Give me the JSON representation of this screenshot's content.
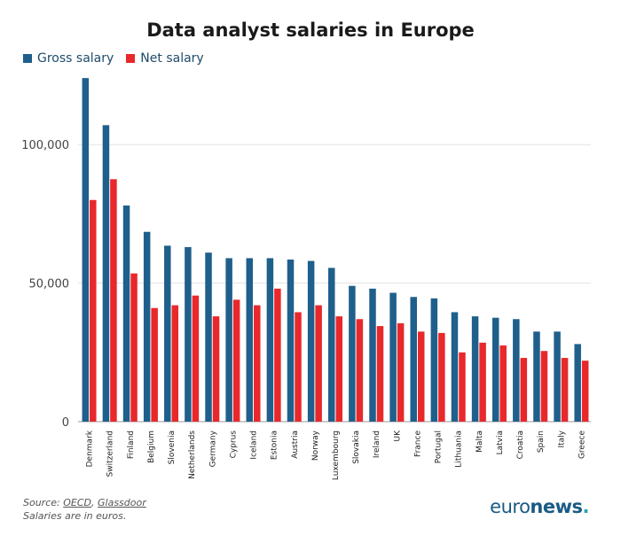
{
  "chart_data": {
    "type": "bar",
    "title": "Data analyst salaries in Europe",
    "xlabel": "",
    "ylabel": "",
    "ylim": [
      0,
      125000
    ],
    "yticks": [
      0,
      50000,
      100000
    ],
    "ytick_labels": [
      "0",
      "50,000",
      "100,000"
    ],
    "grid": true,
    "legend_position": "top-left",
    "categories": [
      "Denmark",
      "Switzerland",
      "Finland",
      "Belgium",
      "Slovenia",
      "Netherlands",
      "Germany",
      "Cyprus",
      "Iceland",
      "Estonia",
      "Austria",
      "Norway",
      "Luxembourg",
      "Slovakia",
      "Ireland",
      "UK",
      "France",
      "Portugal",
      "Lithuania",
      "Malta",
      "Latvia",
      "Croatia",
      "Spain",
      "Italy",
      "Greece"
    ],
    "series": [
      {
        "name": "Gross salary",
        "color": "#1f5f8b",
        "values": [
          124000,
          107000,
          78000,
          68500,
          63500,
          63000,
          61000,
          59000,
          59000,
          59000,
          58500,
          58000,
          55500,
          49000,
          48000,
          46500,
          45000,
          44500,
          39500,
          38000,
          37500,
          37000,
          32500,
          32500,
          28000
        ]
      },
      {
        "name": "Net salary",
        "color": "#e8282b",
        "values": [
          80000,
          87500,
          53500,
          41000,
          42000,
          45500,
          38000,
          44000,
          42000,
          48000,
          39500,
          42000,
          38000,
          37000,
          34500,
          35500,
          32500,
          32000,
          25000,
          28500,
          27500,
          23000,
          25500,
          23000,
          22000
        ]
      }
    ]
  },
  "footer": {
    "source_prefix": "Source: ",
    "source_oecd": "OECD",
    "source_sep": ", ",
    "source_glassdoor": "Glassdoor",
    "note": "Salaries are in euros."
  },
  "brand": {
    "part1": "euro",
    "part2": "news",
    "dot": "."
  }
}
